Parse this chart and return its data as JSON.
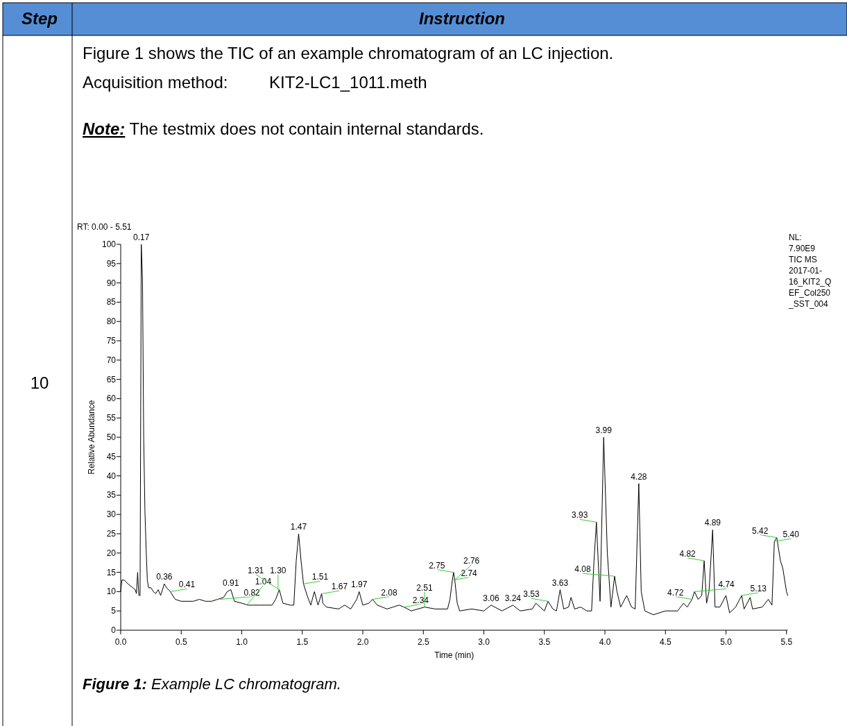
{
  "chart_data": {
    "type": "line",
    "xlabel": "Time (min)",
    "ylabel": "Relative Abundance",
    "xlim": [
      0,
      5.51
    ],
    "xticks": [
      {
        "value": 0,
        "label": "0.0"
      },
      0.5,
      {
        "value": 1,
        "label": "1.0"
      },
      1.5,
      {
        "value": 2,
        "label": "2.0"
      },
      2.5,
      {
        "value": 3,
        "label": "3.0"
      },
      3.5,
      {
        "value": 4,
        "label": "4.0"
      },
      4.5,
      {
        "value": 5,
        "label": "5.0"
      },
      5.5
    ],
    "ylim": [
      0,
      100
    ],
    "yticks": [
      0,
      5,
      10,
      15,
      20,
      25,
      30,
      35,
      40,
      45,
      50,
      55,
      60,
      65,
      70,
      75,
      80,
      85,
      90,
      95,
      100
    ],
    "grid": false,
    "marker": "none",
    "line_style": "solid",
    "series": [
      {
        "color": "#000000",
        "x": [
          0,
          0.01,
          0.03,
          0.06,
          0.08,
          0.1,
          0.12,
          0.13,
          0.14,
          0.15,
          0.16,
          0.17,
          0.18,
          0.19,
          0.2,
          0.21,
          0.22,
          0.23,
          0.25,
          0.27,
          0.29,
          0.31,
          0.33,
          0.36,
          0.38,
          0.41,
          0.45,
          0.5,
          0.55,
          0.6,
          0.65,
          0.7,
          0.75,
          0.8,
          0.85,
          0.88,
          0.91,
          0.94,
          1,
          1.05,
          1.1,
          1.15,
          1.2,
          1.25,
          1.28,
          1.31,
          1.34,
          1.4,
          1.43,
          1.45,
          1.47,
          1.49,
          1.51,
          1.54,
          1.57,
          1.6,
          1.63,
          1.66,
          1.67,
          1.7,
          1.8,
          1.85,
          1.9,
          1.95,
          1.97,
          2,
          2.05,
          2.08,
          2.12,
          2.2,
          2.3,
          2.34,
          2.4,
          2.51,
          2.6,
          2.7,
          2.72,
          2.74,
          2.75,
          2.76,
          2.78,
          2.8,
          2.9,
          3,
          3.06,
          3.15,
          3.24,
          3.3,
          3.4,
          3.43,
          3.5,
          3.53,
          3.57,
          3.6,
          3.63,
          3.66,
          3.7,
          3.72,
          3.75,
          3.8,
          3.85,
          3.89,
          3.91,
          3.93,
          3.96,
          3.99,
          4.02,
          4.05,
          4.08,
          4.1,
          4.13,
          4.18,
          4.22,
          4.25,
          4.28,
          4.3,
          4.33,
          4.4,
          4.5,
          4.6,
          4.65,
          4.68,
          4.72,
          4.74,
          4.77,
          4.8,
          4.82,
          4.84,
          4.86,
          4.89,
          4.91,
          4.95,
          5,
          5.03,
          5.08,
          5.13,
          5.15,
          5.2,
          5.22,
          5.3,
          5.35,
          5.38,
          5.4,
          5.42,
          5.45,
          5.47,
          5.5,
          5.51
        ],
        "values": [
          10,
          13,
          13,
          12,
          11.5,
          11,
          10.5,
          9.5,
          15,
          9,
          9,
          100,
          91,
          50,
          31,
          21,
          13,
          11,
          11,
          10,
          9.5,
          10.5,
          9,
          12,
          11,
          10,
          8,
          7.5,
          7.5,
          7.5,
          8,
          7.5,
          7.5,
          8,
          8.5,
          10,
          10.5,
          7.5,
          7,
          6.5,
          6.5,
          6.5,
          6.5,
          6.5,
          8,
          10.5,
          7,
          6.5,
          6.5,
          18,
          25,
          18,
          12,
          9,
          6.5,
          10,
          6.5,
          9.5,
          7,
          6,
          5.5,
          6.5,
          5.5,
          8,
          10,
          6.5,
          7,
          8,
          6.5,
          5.5,
          6.5,
          6,
          5,
          6,
          5.5,
          5.5,
          8,
          13,
          15,
          13,
          7,
          5,
          5.5,
          5,
          6.5,
          5,
          6.5,
          5,
          5.5,
          7,
          5,
          7.5,
          5.5,
          5,
          10.5,
          5.5,
          6,
          8.5,
          5.5,
          6,
          5,
          5,
          18,
          28,
          7.5,
          50,
          20,
          6,
          14,
          10,
          6,
          9,
          6,
          5.5,
          38,
          10,
          5,
          4,
          5,
          5,
          7,
          6,
          8,
          10,
          8,
          9,
          18,
          7,
          10,
          26,
          6,
          6,
          9,
          4.5,
          6,
          9,
          5.5,
          8.5,
          5.5,
          6,
          8,
          6.5,
          23,
          24,
          18,
          16,
          10,
          9
        ]
      }
    ],
    "annotations": [
      "Step",
      "Instruction",
      "10",
      "Figure 1 shows the TIC of an example chromatogram of an LC injection.",
      "Acquisition method:",
      "KIT2-LC1_1011.meth",
      "Note:",
      "The testmix does not contain internal standards.",
      "Figure 1:",
      "Example LC chromatogram.",
      "RT: 0.00 - 5.51",
      "NL:",
      "7.90E9",
      "TIC  MS",
      "2017-01-",
      "16_KIT2_Q",
      "EF_Col250",
      "_SST_004",
      {
        "text": "0.17",
        "x": 0.17,
        "y": 100
      },
      {
        "text": "0.36",
        "x": 0.36,
        "y": 12
      },
      {
        "text": "0.41",
        "x": 0.41,
        "y": 10
      },
      {
        "text": "0.82",
        "x": 0.82,
        "y": 8
      },
      {
        "text": "0.91",
        "x": 0.91,
        "y": 10.5
      },
      {
        "text": "1.04",
        "x": 1.04,
        "y": 6.5
      },
      {
        "text": "1.30",
        "x": 1.3,
        "y": 10.5
      },
      {
        "text": "1.31",
        "x": 1.31,
        "y": 10.5
      },
      {
        "text": "1.47",
        "x": 1.47,
        "y": 25
      },
      {
        "text": "1.51",
        "x": 1.51,
        "y": 12
      },
      {
        "text": "1.67",
        "x": 1.67,
        "y": 9.5
      },
      {
        "text": "1.97",
        "x": 1.97,
        "y": 10
      },
      {
        "text": "2.08",
        "x": 2.08,
        "y": 8
      },
      {
        "text": "2.34",
        "x": 2.34,
        "y": 6
      },
      {
        "text": "2.51",
        "x": 2.51,
        "y": 6
      },
      {
        "text": "2.74",
        "x": 2.74,
        "y": 13
      },
      {
        "text": "2.75",
        "x": 2.75,
        "y": 15
      },
      {
        "text": "2.76",
        "x": 2.76,
        "y": 13
      },
      {
        "text": "3.06",
        "x": 3.06,
        "y": 6.5
      },
      {
        "text": "3.24",
        "x": 3.24,
        "y": 6.5
      },
      {
        "text": "3.53",
        "x": 3.53,
        "y": 7.5
      },
      {
        "text": "3.63",
        "x": 3.63,
        "y": 10.5
      },
      {
        "text": "3.93",
        "x": 3.93,
        "y": 28
      },
      {
        "text": "3.99",
        "x": 3.99,
        "y": 50
      },
      {
        "text": "4.08",
        "x": 4.08,
        "y": 14
      },
      {
        "text": "4.28",
        "x": 4.28,
        "y": 38
      },
      {
        "text": "4.72",
        "x": 4.72,
        "y": 8
      },
      {
        "text": "4.74",
        "x": 4.74,
        "y": 10
      },
      {
        "text": "4.82",
        "x": 4.82,
        "y": 18
      },
      {
        "text": "4.89",
        "x": 4.89,
        "y": 26
      },
      {
        "text": "5.13",
        "x": 5.13,
        "y": 9
      },
      {
        "text": "5.40",
        "x": 5.4,
        "y": 23
      },
      {
        "text": "5.42",
        "x": 5.42,
        "y": 24
      }
    ]
  }
}
